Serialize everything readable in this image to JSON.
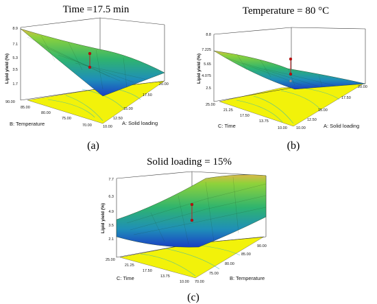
{
  "chart_data": [
    {
      "type": "surface",
      "id": "a",
      "title": "Time =17.5 min",
      "caption": "(a)",
      "zlabel": "Lipid yield (%)",
      "xlabel": "A: Solid loading",
      "ylabel": "B: Temperature",
      "zticks": [
        "8.9",
        "7.1",
        "5.3",
        "3.5",
        "1.7"
      ],
      "xticks": [
        "10.00",
        "12.50",
        "15.00",
        "17.50",
        "20.00"
      ],
      "yticks": [
        "70.00",
        "75.00",
        "80.00",
        "85.00",
        "90.00"
      ],
      "zlim": [
        1.7,
        8.9
      ],
      "design_points": [
        {
          "z_top": 6.3,
          "z_bottom": 4.6
        }
      ]
    },
    {
      "type": "surface",
      "id": "b",
      "title": "Temperature = 80 °C",
      "caption": "(b)",
      "zlabel": "Lipid yield (%)",
      "xlabel": "A: Solid loading",
      "ylabel": "C: Time",
      "zticks": [
        "8.8",
        "7.225",
        "5.65",
        "4.075",
        "2.5"
      ],
      "xticks": [
        "10.00",
        "12.50",
        "15.00",
        "17.50",
        "20.00"
      ],
      "yticks": [
        "10.00",
        "13.75",
        "17.50",
        "21.25",
        "25.00"
      ],
      "zlim": [
        2.5,
        8.8
      ],
      "design_points": [
        {
          "z_top": 6.1,
          "z_bottom": 2.6
        }
      ]
    },
    {
      "type": "surface",
      "id": "c",
      "title": "Solid loading = 15%",
      "caption": "(c)",
      "zlabel": "Lipid yield (%)",
      "xlabel": "B: Temperature",
      "ylabel": "C: Time",
      "zticks": [
        "7.7",
        "6.3",
        "4.9",
        "3.5",
        "2.1"
      ],
      "xticks": [
        "70.00",
        "75.00",
        "80.00",
        "85.00",
        "90.00"
      ],
      "yticks": [
        "10.00",
        "13.75",
        "17.50",
        "21.25",
        "25.00"
      ],
      "zlim": [
        2.1,
        7.7
      ],
      "design_points": [
        {
          "z_top": 6.1,
          "z_bottom": 4.9
        }
      ]
    }
  ]
}
